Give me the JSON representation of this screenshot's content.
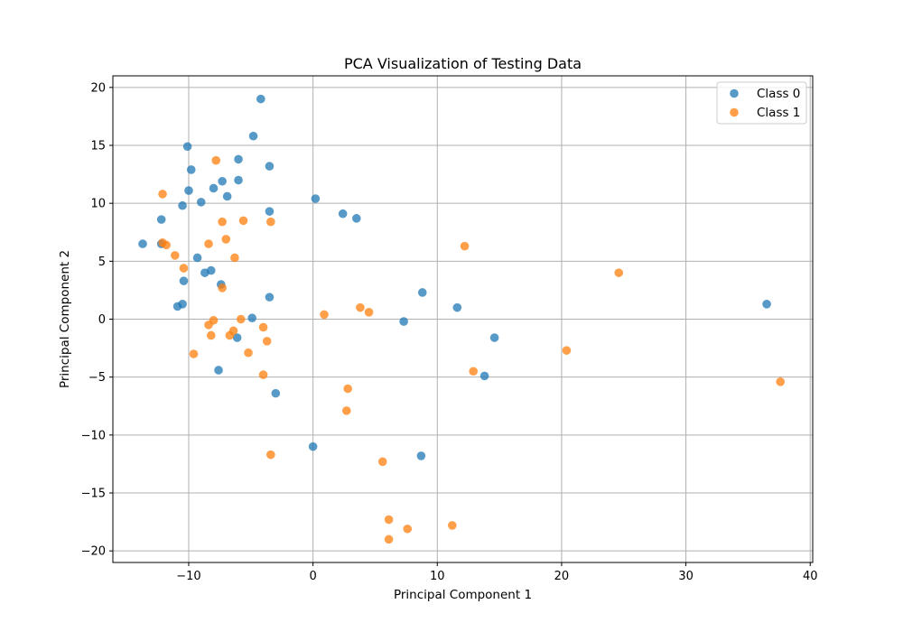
{
  "chart_data": {
    "type": "scatter",
    "title": "PCA Visualization of Testing Data",
    "xlabel": "Principal Component 1",
    "ylabel": "Principal Component 2",
    "xlim": [
      -16.1,
      40.2
    ],
    "ylim": [
      -21.0,
      21.0
    ],
    "xticks": [
      -10,
      0,
      10,
      20,
      30,
      40
    ],
    "yticks": [
      -20,
      -15,
      -10,
      -5,
      0,
      5,
      10,
      15,
      20
    ],
    "xtick_labels": [
      "−10",
      "0",
      "10",
      "20",
      "30",
      "40"
    ],
    "ytick_labels": [
      "−20",
      "−15",
      "−10",
      "−5",
      "0",
      "5",
      "10",
      "15",
      "20"
    ],
    "grid": true,
    "legend_position": "top-right",
    "series": [
      {
        "name": "Class 0",
        "color": "#1f77b4",
        "points": [
          [
            -13.7,
            6.5
          ],
          [
            -12.2,
            8.6
          ],
          [
            -12.2,
            6.5
          ],
          [
            -10.1,
            14.9
          ],
          [
            -9.8,
            12.9
          ],
          [
            -10.0,
            11.1
          ],
          [
            -10.5,
            9.8
          ],
          [
            -9.0,
            10.1
          ],
          [
            -8.0,
            11.3
          ],
          [
            -7.3,
            11.9
          ],
          [
            -6.9,
            10.6
          ],
          [
            -6.0,
            13.8
          ],
          [
            -6.0,
            12.0
          ],
          [
            -4.8,
            15.8
          ],
          [
            -4.2,
            19.0
          ],
          [
            -3.5,
            13.2
          ],
          [
            -3.5,
            9.3
          ],
          [
            -9.3,
            5.3
          ],
          [
            -8.7,
            4.0
          ],
          [
            -8.2,
            4.2
          ],
          [
            -10.4,
            3.3
          ],
          [
            -7.4,
            3.0
          ],
          [
            -3.5,
            1.9
          ],
          [
            -10.9,
            1.1
          ],
          [
            -10.5,
            1.3
          ],
          [
            -4.9,
            0.1
          ],
          [
            -6.1,
            -1.6
          ],
          [
            -7.6,
            -4.4
          ],
          [
            -3.0,
            -6.4
          ],
          [
            0.2,
            10.4
          ],
          [
            2.4,
            9.1
          ],
          [
            3.5,
            8.7
          ],
          [
            8.8,
            2.3
          ],
          [
            7.3,
            -0.2
          ],
          [
            11.6,
            1.0
          ],
          [
            14.6,
            -1.6
          ],
          [
            13.8,
            -4.9
          ],
          [
            8.7,
            -11.8
          ],
          [
            0.0,
            -11.0
          ],
          [
            36.5,
            1.3
          ]
        ]
      },
      {
        "name": "Class 1",
        "color": "#ff7f0e",
        "points": [
          [
            -12.1,
            10.8
          ],
          [
            -7.8,
            13.7
          ],
          [
            -7.3,
            8.4
          ],
          [
            -5.6,
            8.5
          ],
          [
            -3.4,
            8.4
          ],
          [
            -12.1,
            6.6
          ],
          [
            -11.8,
            6.4
          ],
          [
            -11.1,
            5.5
          ],
          [
            -10.4,
            4.4
          ],
          [
            -8.4,
            6.5
          ],
          [
            -7.0,
            6.9
          ],
          [
            -6.3,
            5.3
          ],
          [
            -7.3,
            2.7
          ],
          [
            -8.0,
            -0.1
          ],
          [
            -8.4,
            -0.5
          ],
          [
            -8.2,
            -1.4
          ],
          [
            -6.7,
            -1.4
          ],
          [
            -6.4,
            -1.0
          ],
          [
            -5.8,
            0.0
          ],
          [
            -4.0,
            -0.7
          ],
          [
            -3.7,
            -1.9
          ],
          [
            -5.2,
            -2.9
          ],
          [
            -9.6,
            -3.0
          ],
          [
            -4.0,
            -4.8
          ],
          [
            -3.4,
            -11.7
          ],
          [
            0.9,
            0.4
          ],
          [
            3.8,
            1.0
          ],
          [
            4.5,
            0.6
          ],
          [
            2.8,
            -6.0
          ],
          [
            2.7,
            -7.9
          ],
          [
            5.6,
            -12.3
          ],
          [
            6.1,
            -17.3
          ],
          [
            6.1,
            -19.0
          ],
          [
            7.6,
            -18.1
          ],
          [
            11.2,
            -17.8
          ],
          [
            12.2,
            6.3
          ],
          [
            12.9,
            -4.5
          ],
          [
            20.4,
            -2.7
          ],
          [
            24.6,
            4.0
          ],
          [
            37.6,
            -5.4
          ]
        ]
      }
    ]
  }
}
